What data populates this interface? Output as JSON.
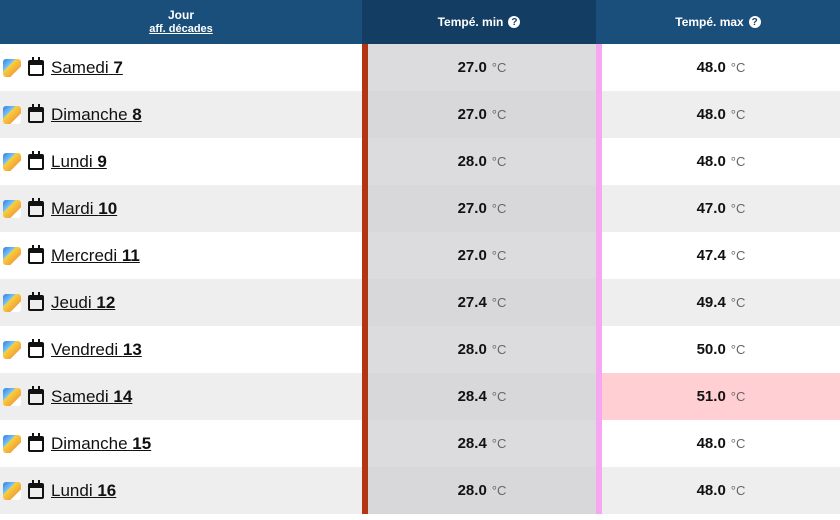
{
  "header": {
    "jour": "Jour",
    "decades_link": "aff. décades",
    "min": "Tempé. min",
    "max": "Tempé. max",
    "help": "?"
  },
  "unit": "°C",
  "rows": [
    {
      "name": "Samedi",
      "num": "7",
      "min": "27.0",
      "max": "48.0",
      "hot": false
    },
    {
      "name": "Dimanche",
      "num": "8",
      "min": "27.0",
      "max": "48.0",
      "hot": false
    },
    {
      "name": "Lundi",
      "num": "9",
      "min": "28.0",
      "max": "48.0",
      "hot": false
    },
    {
      "name": "Mardi",
      "num": "10",
      "min": "27.0",
      "max": "47.0",
      "hot": false
    },
    {
      "name": "Mercredi",
      "num": "11",
      "min": "27.0",
      "max": "47.4",
      "hot": false
    },
    {
      "name": "Jeudi",
      "num": "12",
      "min": "27.4",
      "max": "49.4",
      "hot": false
    },
    {
      "name": "Vendredi",
      "num": "13",
      "min": "28.0",
      "max": "50.0",
      "hot": false
    },
    {
      "name": "Samedi",
      "num": "14",
      "min": "28.4",
      "max": "51.0",
      "hot": true
    },
    {
      "name": "Dimanche",
      "num": "15",
      "min": "28.4",
      "max": "48.0",
      "hot": false
    },
    {
      "name": "Lundi",
      "num": "16",
      "min": "28.0",
      "max": "48.0",
      "hot": false
    }
  ]
}
